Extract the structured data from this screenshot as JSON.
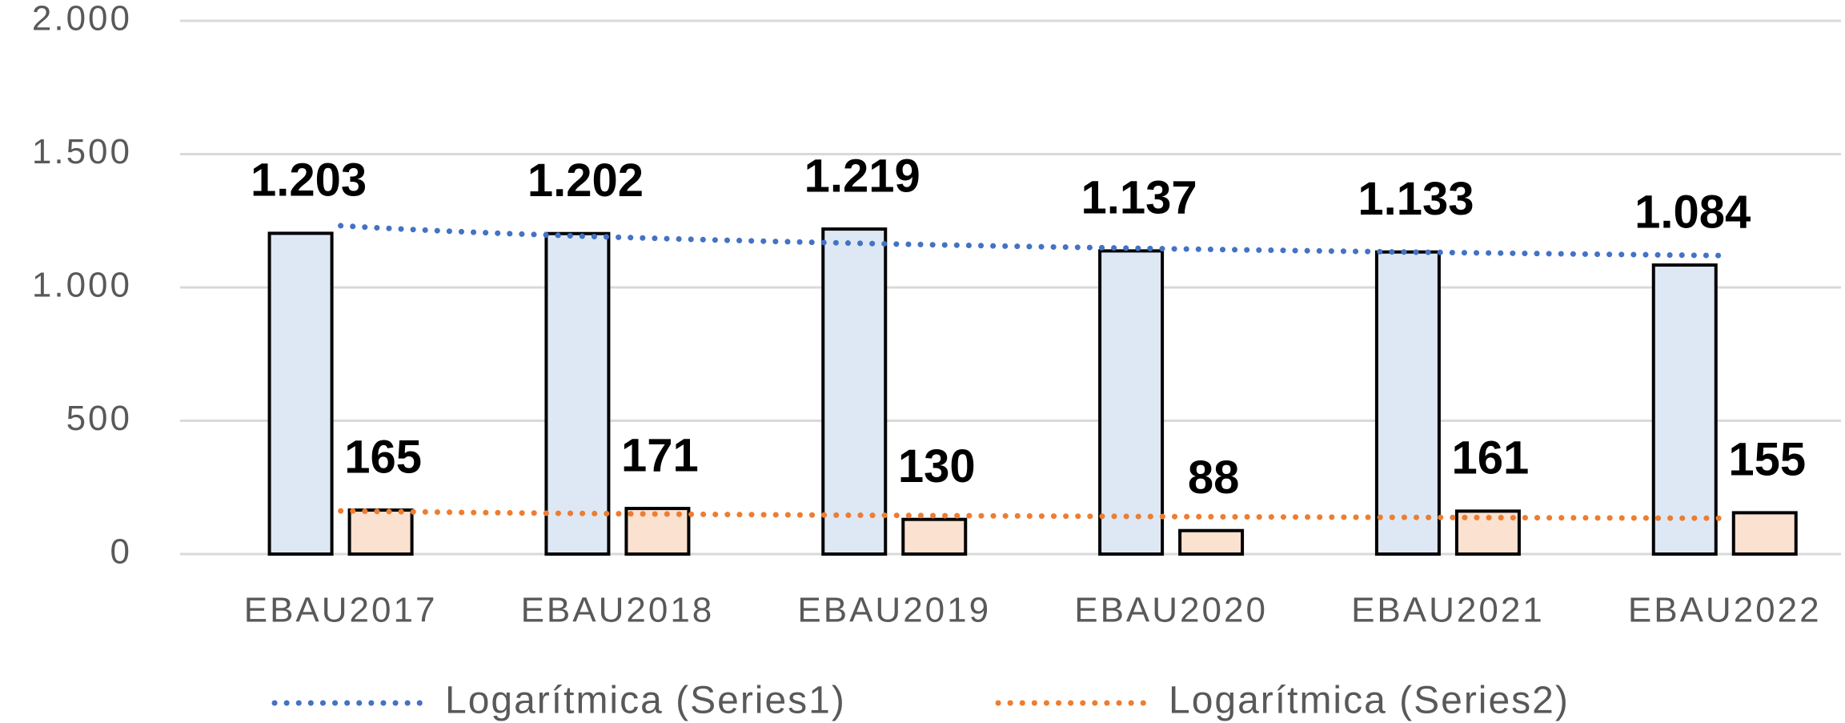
{
  "chart_data": {
    "type": "bar",
    "categories": [
      "EBAU2017",
      "EBAU2018",
      "EBAU2019",
      "EBAU2020",
      "EBAU2021",
      "EBAU2022"
    ],
    "series": [
      {
        "color": "#dde8f4",
        "values": [
          1203,
          1202,
          1219,
          1137,
          1133,
          1084
        ],
        "value_labels": [
          "1.203",
          "1.202",
          "1.219",
          "1.137",
          "1.133",
          "1.084"
        ]
      },
      {
        "color": "#fbe1d0",
        "values": [
          165,
          171,
          130,
          88,
          161,
          155
        ]
      }
    ],
    "trendlines": [
      {
        "name": "Logarítmica (Series1)",
        "color": "#4472c4",
        "series": 0,
        "kind": "logarithmic"
      },
      {
        "name": "Logarítmica (Series2)",
        "color": "#ed7d31",
        "series": 1,
        "kind": "logarithmic"
      }
    ],
    "ylim": [
      0,
      2000
    ],
    "yticks": [
      0,
      500,
      {
        "value": 1000,
        "label": "1.000"
      },
      {
        "value": 1500,
        "label": "1.500"
      },
      {
        "value": 2000,
        "label": "2.000"
      }
    ],
    "grid": true,
    "legend": "bottom"
  }
}
